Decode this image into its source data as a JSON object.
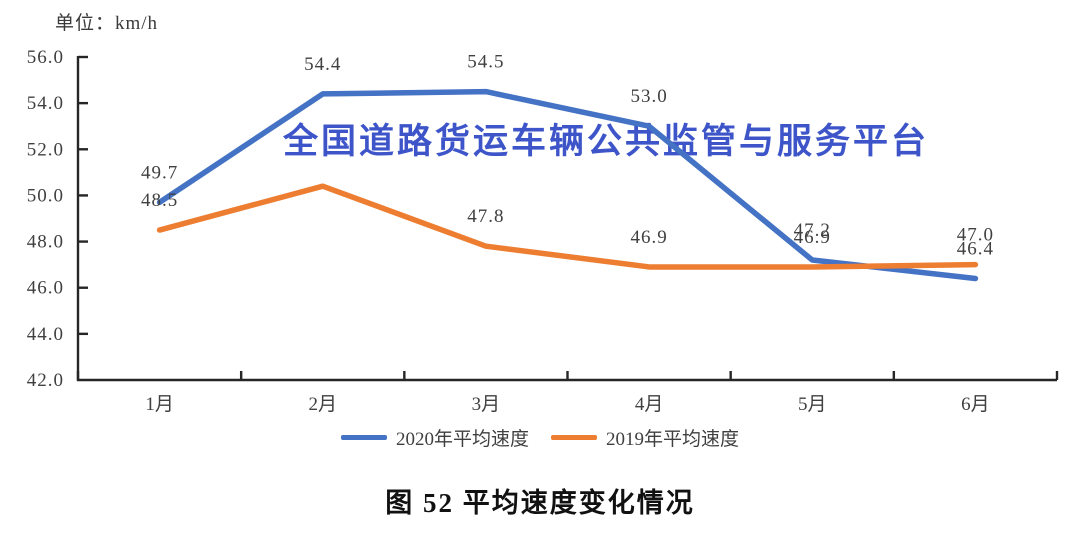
{
  "page": {
    "unit_label": "单位：km/h",
    "watermark": "全国道路货运车辆公共监管与服务平台",
    "caption": "图 52 平均速度变化情况"
  },
  "chart_data": {
    "type": "line",
    "title": "图 52 平均速度变化情况",
    "unit": "km/h",
    "categories": [
      "1月",
      "2月",
      "3月",
      "4月",
      "5月",
      "6月"
    ],
    "series": [
      {
        "name": "2020年平均速度",
        "color": "#4472C4",
        "values": [
          49.7,
          54.4,
          54.5,
          53.0,
          47.2,
          46.4
        ],
        "labels": [
          "49.7",
          "54.4",
          "54.5",
          "53.0",
          "47.2",
          "46.4"
        ]
      },
      {
        "name": "2019年平均速度",
        "color": "#ED7D31",
        "values": [
          48.5,
          50.4,
          47.8,
          46.9,
          46.9,
          47.0
        ],
        "labels": [
          "48.5",
          null,
          "47.8",
          "46.9",
          "46.9",
          "47.0"
        ]
      }
    ],
    "ylim": [
      42,
      56
    ],
    "ytick_step": 2,
    "yticks": [
      "56.0",
      "54.0",
      "52.0",
      "50.0",
      "48.0",
      "46.0",
      "44.0",
      "42.0"
    ],
    "grid": false,
    "legend_position": "bottom",
    "axis_color": "#262626",
    "text_color": "#404040",
    "watermark_color": "#3D55C9"
  }
}
